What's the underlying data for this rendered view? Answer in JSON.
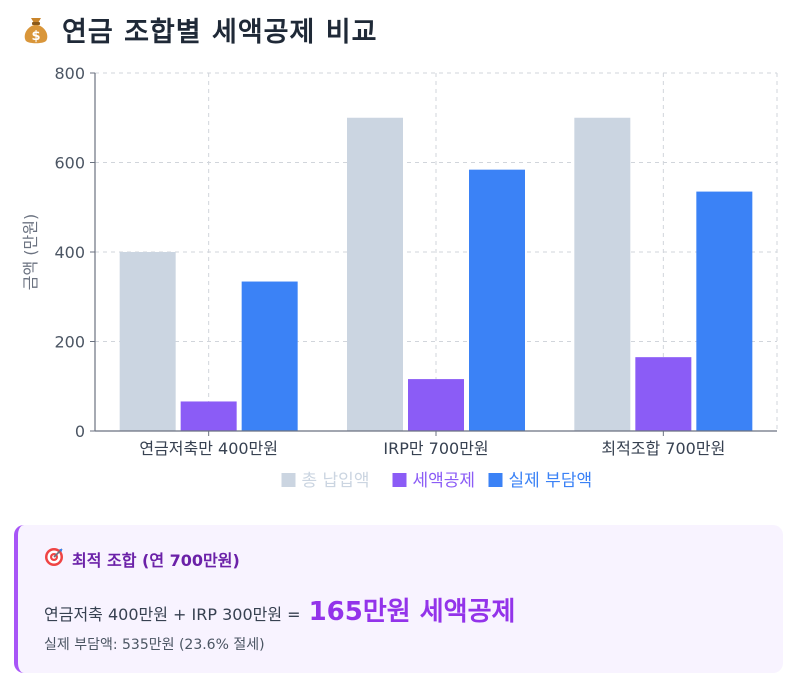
{
  "header": {
    "title": "연금 조합별 세액공제 비교",
    "icon": "money-bag-icon"
  },
  "chart_data": {
    "type": "bar",
    "ylabel": "금액 (만원)",
    "xlabel": "",
    "ylim": [
      0,
      800
    ],
    "yticks": [
      0,
      200,
      400,
      600,
      800
    ],
    "grid": true,
    "legend_position": "bottom-center",
    "categories": [
      "연금저축만 400만원",
      "IRP만 700만원",
      "최적조합 700만원"
    ],
    "series": [
      {
        "name": "총 납입액",
        "color": "#cbd5e1",
        "values": [
          400,
          700,
          700
        ]
      },
      {
        "name": "세액공제",
        "color": "#8b5cf6",
        "values": [
          66,
          116,
          165
        ]
      },
      {
        "name": "실제 부담액",
        "color": "#3b82f6",
        "values": [
          334,
          584,
          535
        ]
      }
    ]
  },
  "summary": {
    "title": "최적 조합 (연 700만원)",
    "formula": "연금저축 400만원 + IRP 300만원 =",
    "result": "165만원 세액공제",
    "detail": "실제 부담액: 535만원 (23.6% 절세)"
  }
}
